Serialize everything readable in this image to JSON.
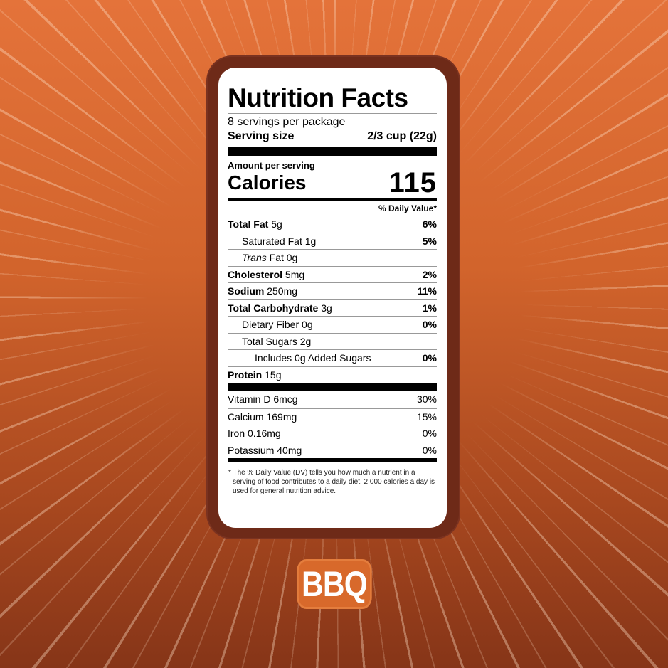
{
  "label": {
    "title": "Nutrition Facts",
    "servings_per_package": "8 servings per package",
    "serving_size_label": "Serving size",
    "serving_size_value": "2/3 cup (22g)",
    "amount_per_serving": "Amount per serving",
    "calories_label": "Calories",
    "calories_value": "115",
    "dv_header": "% Daily Value*",
    "nutrients": [
      {
        "name": "Total Fat",
        "amount": "5g",
        "dv": "6%"
      },
      {
        "name": "Saturated Fat",
        "amount": "1g",
        "dv": "5%"
      },
      {
        "name": "Trans",
        "suffix": "Fat 0g",
        "dv": ""
      },
      {
        "name": "Cholesterol",
        "amount": "5mg",
        "dv": "2%"
      },
      {
        "name": "Sodium",
        "amount": "250mg",
        "dv": "11%"
      },
      {
        "name": "Total Carbohydrate",
        "amount": "3g",
        "dv": "1%"
      },
      {
        "name": "Dietary Fiber",
        "amount": "0g",
        "dv": "0%"
      },
      {
        "name": "Total Sugars",
        "amount": "2g",
        "dv": ""
      },
      {
        "name": "Includes 0g Added Sugars",
        "amount": "",
        "dv": "0%"
      },
      {
        "name": "Protein",
        "amount": "15g",
        "dv": ""
      }
    ],
    "vitamins": [
      {
        "text": "Vitamin D 6mcg",
        "dv": "30%"
      },
      {
        "text": "Calcium 169mg",
        "dv": "15%"
      },
      {
        "text": "Iron 0.16mg",
        "dv": "0%"
      },
      {
        "text": "Potassium 40mg",
        "dv": "0%"
      }
    ],
    "footnote": "* The % Daily Value (DV) tells you how much a nutrient in a serving of food contributes to a daily diet. 2,000 calories a day is used for general nutrition advice."
  },
  "flavor_badge": "BBQ",
  "colors": {
    "background_top": "#e4733a",
    "background_bottom": "#863518",
    "card_border": "#6e2a18",
    "badge": "#d8692b"
  }
}
